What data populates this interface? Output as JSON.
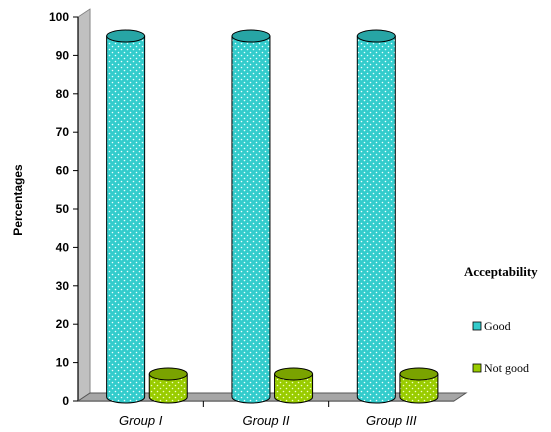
{
  "chart_data": {
    "type": "bar",
    "style": "3d-cylinder",
    "title": "",
    "ylabel": "Percentages",
    "xlabel": "",
    "ylim": [
      0,
      100
    ],
    "yticks": [
      0,
      10,
      20,
      30,
      40,
      50,
      60,
      70,
      80,
      90,
      100
    ],
    "categories": [
      "Group I",
      "Group II",
      "Group III"
    ],
    "series": [
      {
        "name": "Good",
        "values": [
          94,
          94,
          94
        ]
      },
      {
        "name": "Not good",
        "values": [
          6,
          6,
          6
        ]
      }
    ],
    "legend": {
      "title": "Acceptability",
      "placement": "right"
    },
    "grid": false
  },
  "colors": {
    "Good": "#33cccc",
    "Not good": "#99cc00",
    "floor": "#a6a6a6"
  }
}
